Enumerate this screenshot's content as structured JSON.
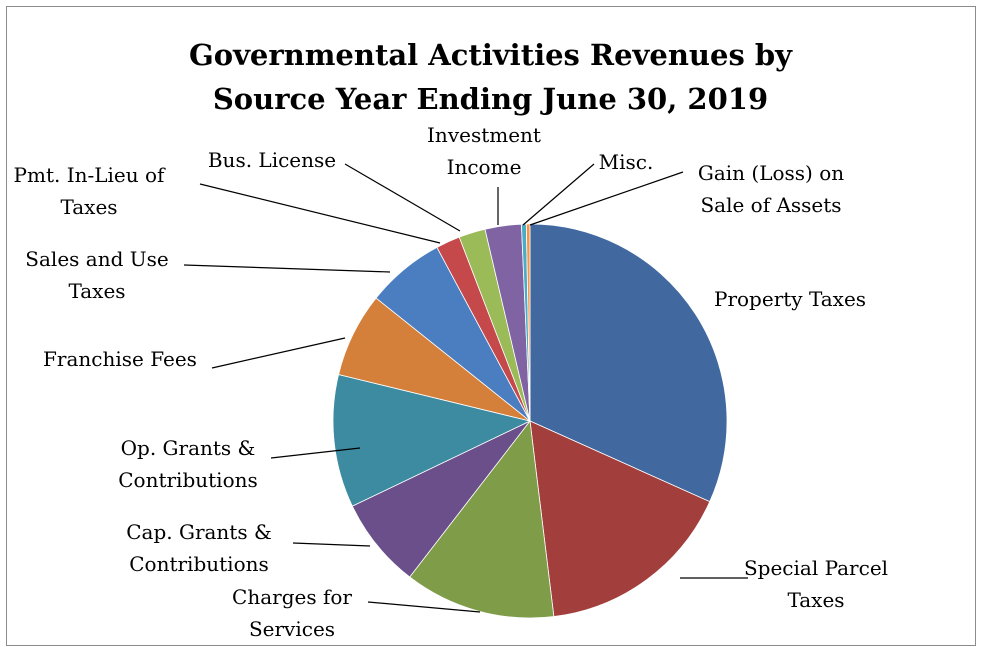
{
  "chart_data": {
    "type": "pie",
    "title_lines": [
      "Governmental Activities Revenues by",
      "Source  Year Ending June 30, 2019"
    ],
    "series": [
      {
        "slices": [
          {
            "label": [
              "Property Taxes"
            ],
            "value": 32.0,
            "color": "#4169a0"
          },
          {
            "label": [
              "Special Parcel",
              "Taxes"
            ],
            "value": 16.5,
            "color": "#a23f3d"
          },
          {
            "label": [
              "Charges for",
              "Services"
            ],
            "value": 12.5,
            "color": "#7f9c48"
          },
          {
            "label": [
              "Cap. Grants &",
              "Contributions"
            ],
            "value": 7.5,
            "color": "#6a4f8a"
          },
          {
            "label": [
              "Op. Grants &",
              "Contributions"
            ],
            "value": 11.0,
            "color": "#3c8ba1"
          },
          {
            "label": [
              "Franchise Fees"
            ],
            "value": 7.0,
            "color": "#d47f3a"
          },
          {
            "label": [
              "Sales and Use",
              "Taxes"
            ],
            "value": 6.5,
            "color": "#4a7ec0"
          },
          {
            "label": [
              "Pmt. In-Lieu of",
              "Taxes"
            ],
            "value": 2.0,
            "color": "#c5484a"
          },
          {
            "label": [
              "Bus. License"
            ],
            "value": 2.2,
            "color": "#9bbb59"
          },
          {
            "label": [
              "Investment",
              "Income"
            ],
            "value": 3.0,
            "color": "#7f63a3"
          },
          {
            "label": [
              "Misc."
            ],
            "value": 0.4,
            "color": "#4aacc6"
          },
          {
            "label": [
              "Gain (Loss) on",
              "Sale of Assets"
            ],
            "value": 0.3,
            "color": "#f79646"
          }
        ]
      }
    ],
    "legend": "none",
    "data_labels": "category names with leader lines"
  }
}
